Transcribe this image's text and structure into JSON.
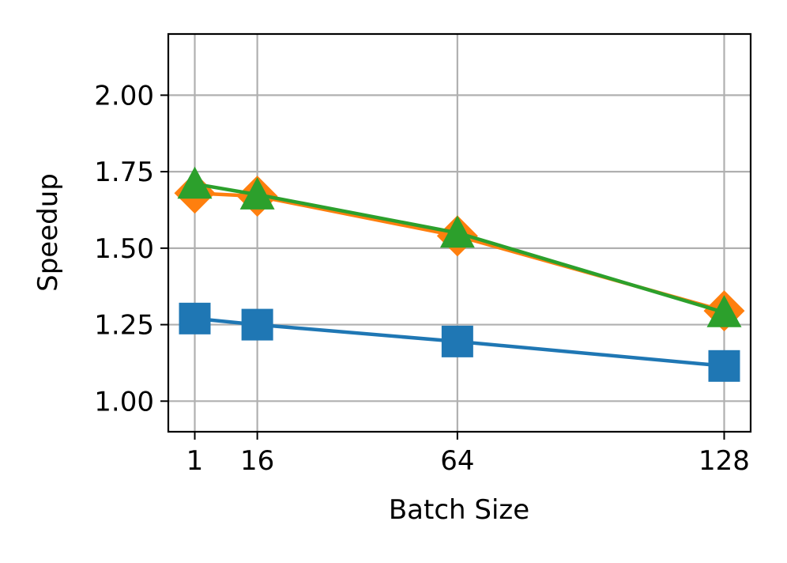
{
  "chart_data": {
    "type": "line",
    "title": "",
    "xlabel": "Batch Size",
    "ylabel": "Speedup",
    "x": [
      1,
      16,
      64,
      128
    ],
    "x_tick_labels": [
      "1",
      "16",
      "64",
      "128"
    ],
    "y_ticks": [
      1.0,
      1.25,
      1.5,
      1.75,
      2.0
    ],
    "y_tick_labels": [
      "1.00",
      "1.25",
      "1.50",
      "1.75",
      "2.00"
    ],
    "xlim": [
      -5.35,
      134.35
    ],
    "ylim": [
      0.9,
      2.2
    ],
    "grid": true,
    "legend": "none",
    "series": [
      {
        "color": "#1f77b4",
        "marker": "square",
        "values": [
          1.27,
          1.25,
          1.195,
          1.115
        ]
      },
      {
        "color": "#ff7f0e",
        "marker": "diamond",
        "values": [
          1.68,
          1.67,
          1.54,
          1.295
        ]
      },
      {
        "color": "#2ca02c",
        "marker": "triangle",
        "values": [
          1.71,
          1.675,
          1.55,
          1.29
        ]
      }
    ]
  }
}
